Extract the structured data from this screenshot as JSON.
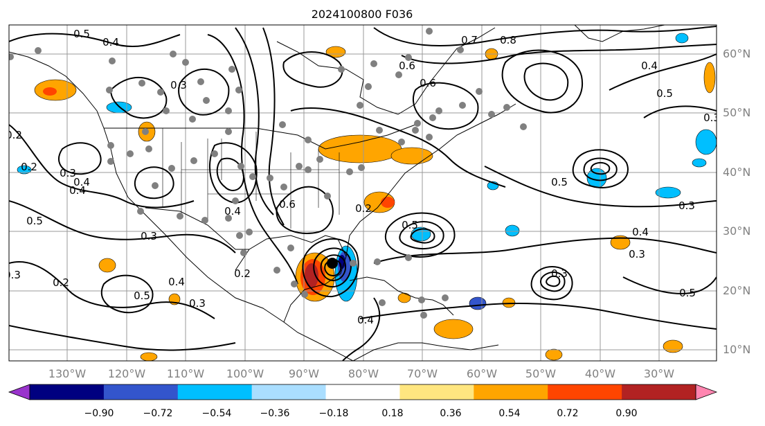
{
  "title": "2024100800 F036",
  "lat_labels": [
    "60°N",
    "50°N",
    "40°N",
    "30°N",
    "20°N",
    "10°N"
  ],
  "lon_labels": [
    "130°W",
    "120°W",
    "110°W",
    "100°W",
    "90°W",
    "80°W",
    "70°W",
    "60°W",
    "50°W",
    "40°W",
    "30°W"
  ],
  "colorbar": {
    "colors": [
      "#9933cc",
      "#000080",
      "#3355cc",
      "#00bfff",
      "#aadeff",
      "#ffffff",
      "#ffe680",
      "#ffa500",
      "#ff4500",
      "#b22222",
      "#ff85b0"
    ],
    "tick_labels": [
      "−0.90",
      "−0.72",
      "−0.54",
      "−0.36",
      "−0.18",
      "0.18",
      "0.36",
      "0.54",
      "0.72",
      "0.90"
    ]
  },
  "contour_labels": [
    "0.4",
    "0.5",
    "0.7",
    "0.8",
    "0.6",
    "0.3",
    "0.2",
    "0.4",
    "0.5",
    "0.3",
    "0.4",
    "0.3",
    "0.5",
    "0.2",
    "0.3",
    "0.4",
    "0.3",
    "0.4",
    "0.5",
    "0.6",
    "0.5",
    "0.3",
    "0.4",
    "0.3",
    "0.5",
    "0.4",
    "0.2",
    "0.3",
    "0.2",
    "0.4",
    "0.5",
    "0.3",
    "0.2",
    "0.6"
  ],
  "colors": {
    "grid": "#999999",
    "coast": "#000000",
    "station": "#808080",
    "positive_shade": "#ffa500",
    "negative_shade": "#00bfff"
  }
}
